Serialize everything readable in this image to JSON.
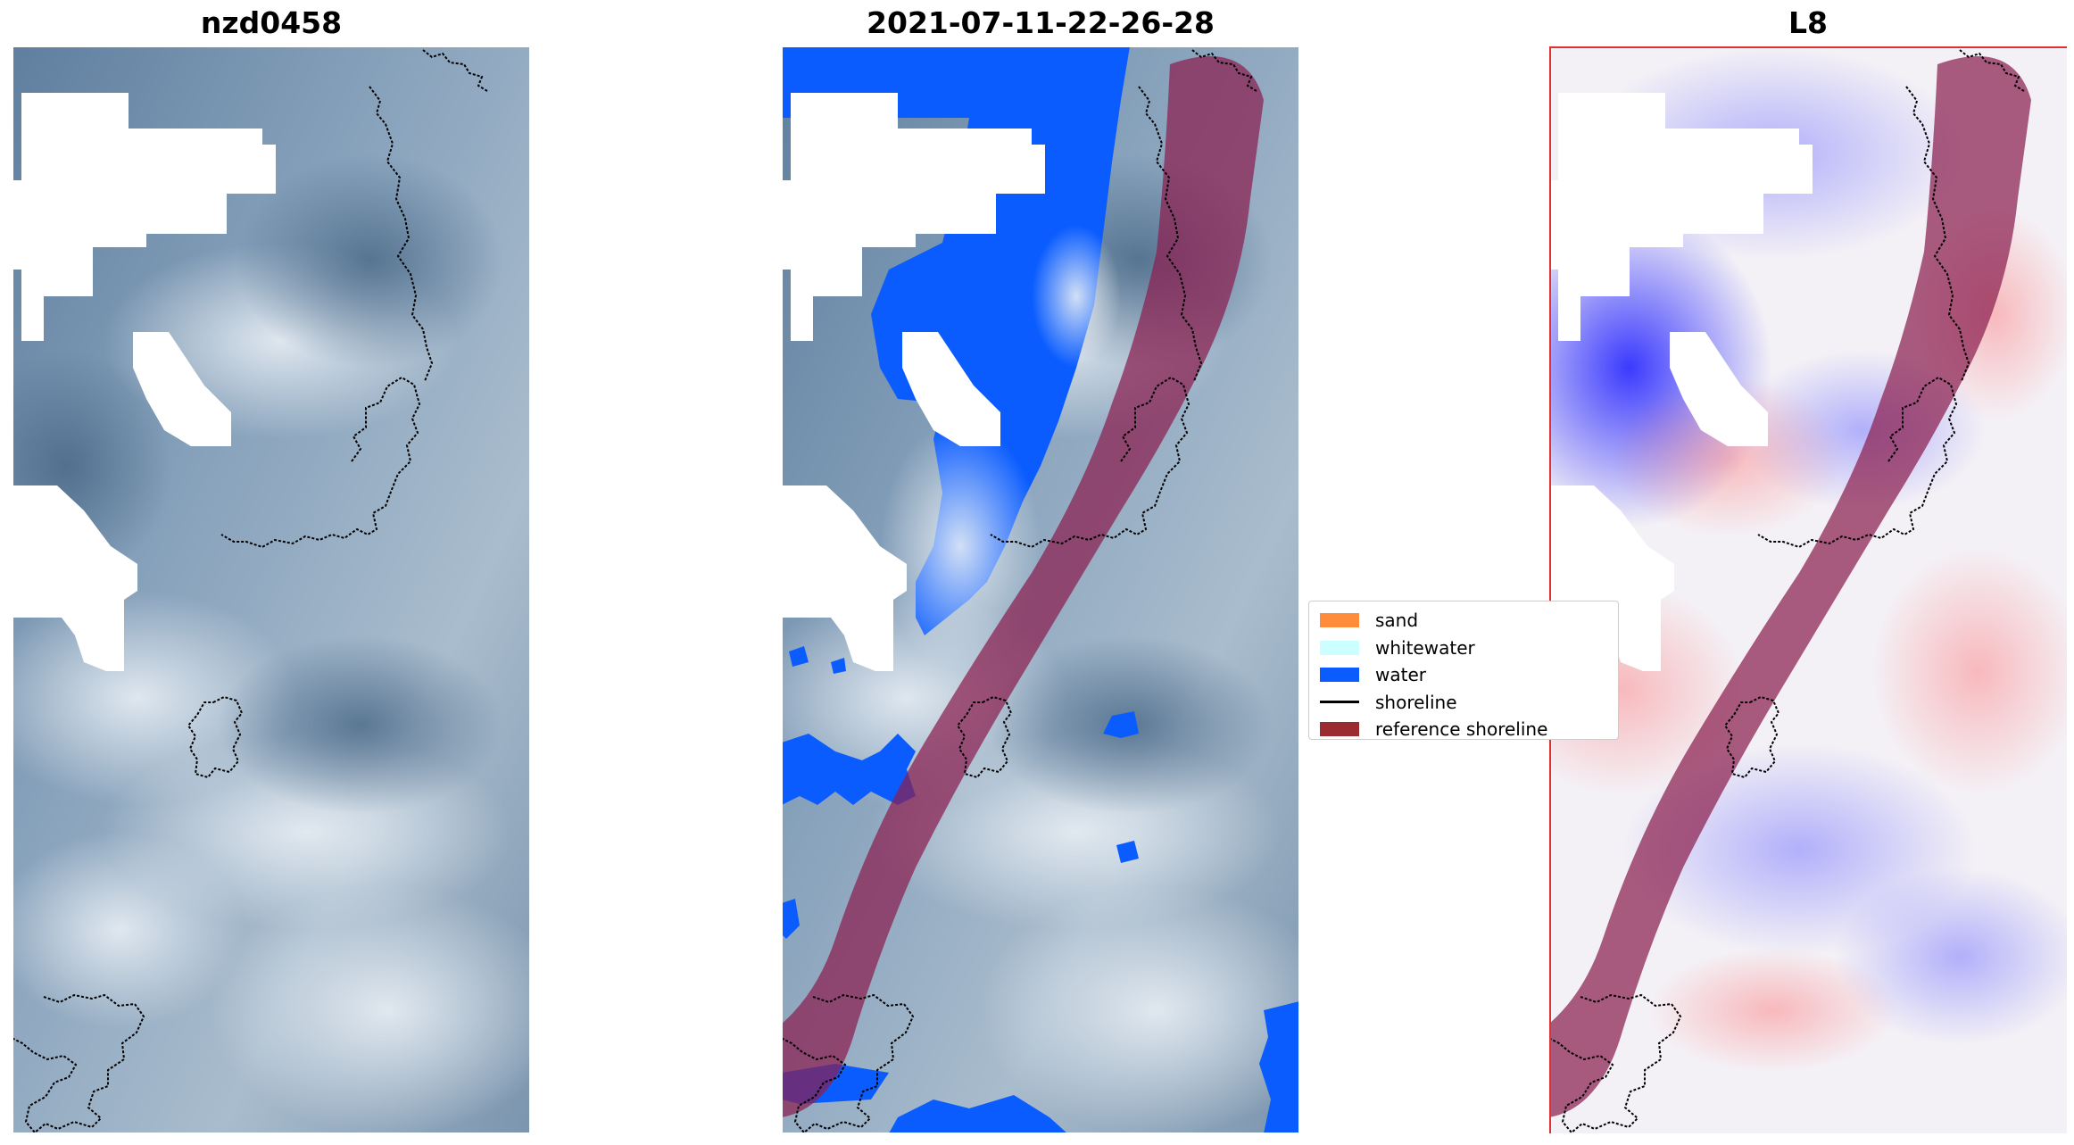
{
  "panels": [
    {
      "title": "nzd0458"
    },
    {
      "title": "2021-07-11-22-26-28"
    },
    {
      "title": "L8"
    }
  ],
  "legend": {
    "items": [
      {
        "label": "sand",
        "color": "#ff8c3a",
        "type": "patch"
      },
      {
        "label": "whitewater",
        "color": "#ccffff",
        "type": "patch"
      },
      {
        "label": "water",
        "color": "#0a5cff",
        "type": "patch"
      },
      {
        "label": "shoreline",
        "color": "#000000",
        "type": "line"
      },
      {
        "label": "reference shoreline",
        "color": "#9b2a31",
        "type": "patch"
      }
    ]
  },
  "colors": {
    "rgb_background": "#6f8ba7",
    "cloud_mask": "#ffffff",
    "water_class": "#0a5cff",
    "reference_buffer": "#8b1f4f",
    "index_positive": "#ff4040",
    "index_negative": "#1a1aff",
    "shoreline": "#000000"
  }
}
